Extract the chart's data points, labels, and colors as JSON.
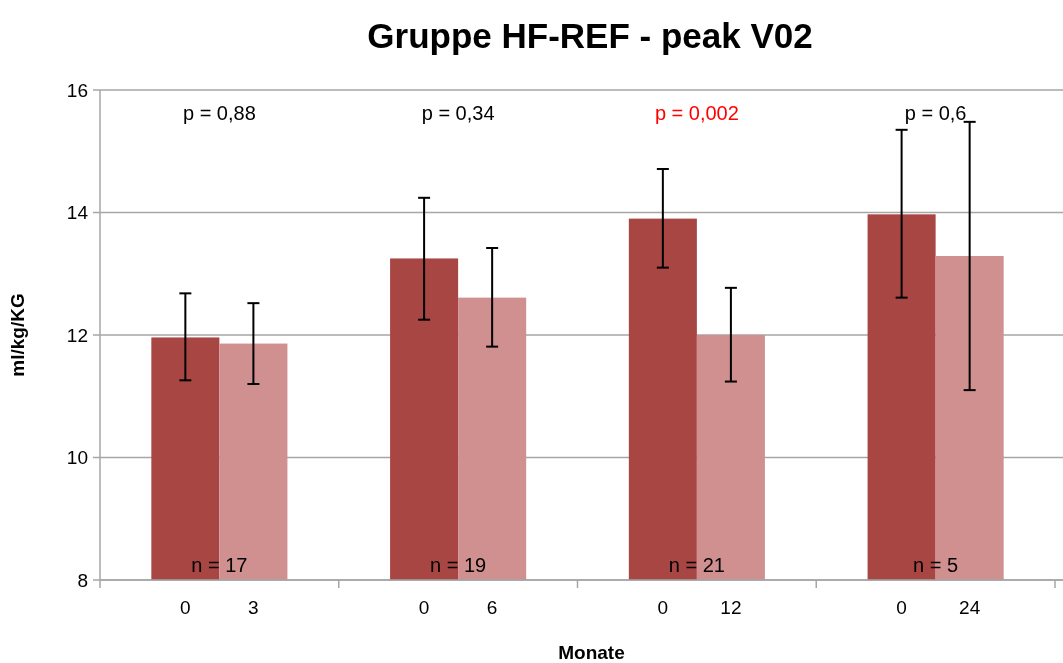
{
  "chart_data": {
    "type": "bar",
    "title": "Gruppe HF-REF - peak V02",
    "xlabel": "Monate",
    "ylabel": "ml/kg/KG",
    "categories": [
      "0",
      "3",
      "0",
      "6",
      "0",
      "12",
      "0",
      "24"
    ],
    "values": [
      11.96,
      11.86,
      13.25,
      12.61,
      13.9,
      12.0,
      13.97,
      13.29
    ],
    "colors": [
      "#a84644",
      "#d09090",
      "#a84644",
      "#d09090",
      "#a84644",
      "#d09090",
      "#a84644",
      "#d09090"
    ],
    "errors": [
      [
        11.26,
        12.68
      ],
      [
        11.2,
        12.52
      ],
      [
        12.25,
        14.24
      ],
      [
        11.81,
        13.42
      ],
      [
        13.1,
        14.71
      ],
      [
        11.24,
        12.77
      ],
      [
        12.61,
        15.35
      ],
      [
        11.1,
        15.48
      ]
    ],
    "ylim": [
      8,
      16
    ],
    "yticks": [
      8,
      10,
      12,
      14,
      16
    ],
    "grid": "y",
    "annotations": [
      "p = 0,88",
      "p = 0,34",
      "p = 0,002",
      "p = 0,6",
      "n = 17",
      "n = 19",
      "n = 21",
      "n = 5"
    ]
  }
}
